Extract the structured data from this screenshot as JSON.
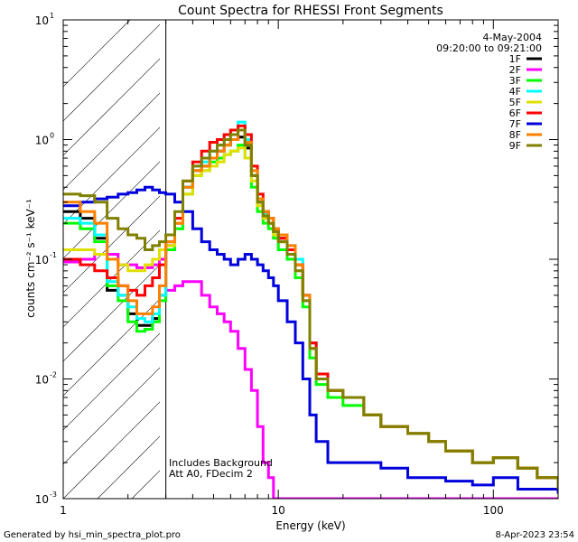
{
  "chart_data": {
    "type": "line",
    "title": "Count Spectra for RHESSI Front Segments",
    "xlabel": "Energy (keV)",
    "ylabel": "counts cm⁻² s⁻¹ keV⁻¹",
    "xscale": "log",
    "yscale": "log",
    "xlim": [
      1,
      200
    ],
    "ylim": [
      0.001,
      10
    ],
    "x_ticks": [
      {
        "value": 1,
        "label": "1"
      },
      {
        "value": 10,
        "label": "10"
      },
      {
        "value": 100,
        "label": "100"
      }
    ],
    "y_ticks": [
      {
        "value": 0.001,
        "base": "10",
        "exp": "-3"
      },
      {
        "value": 0.01,
        "base": "10",
        "exp": "-2"
      },
      {
        "value": 0.1,
        "base": "10",
        "exp": "-1"
      },
      {
        "value": 1,
        "base": "10",
        "exp": "0"
      },
      {
        "value": 10,
        "base": "10",
        "exp": "1"
      }
    ],
    "shaded_region": [
      1,
      3
    ],
    "date": "4-May-2004",
    "time_range": "09:20:00 to 09:21:00",
    "annotations": [
      "Includes Background",
      "Att A0, FDecim 2"
    ],
    "series": [
      {
        "name": "1F",
        "color": "#000000",
        "x": [
          1.0,
          1.2,
          1.4,
          1.6,
          1.8,
          2.0,
          2.2,
          2.4,
          2.6,
          2.8,
          3.0,
          3.3,
          3.6,
          4.0,
          4.4,
          4.8,
          5.2,
          5.6,
          6.0,
          6.5,
          7.0,
          7.5,
          8.0,
          8.5,
          9.0,
          9.5,
          10.0,
          11.0,
          12.0,
          13.0,
          14.0,
          15.0,
          17.0,
          20.0,
          25.0,
          30.0,
          40.0,
          50.0,
          60.0,
          80.0,
          100.0,
          130.0,
          160.0,
          200.0
        ],
        "y": [
          0.25,
          0.22,
          0.15,
          0.055,
          0.05,
          0.035,
          0.028,
          0.028,
          0.032,
          0.05,
          0.13,
          0.2,
          0.4,
          0.55,
          0.6,
          0.7,
          0.8,
          0.9,
          1.0,
          1.05,
          0.85,
          0.5,
          0.3,
          0.22,
          0.2,
          0.17,
          0.15,
          0.12,
          0.09,
          0.05,
          0.02,
          0.011,
          0.008,
          0.007,
          0.005,
          0.004,
          0.0035,
          0.003,
          0.0025,
          0.002,
          0.0022,
          0.0018,
          0.0015,
          0.0012
        ]
      },
      {
        "name": "2F",
        "color": "#ff00ff",
        "x": [
          1.0,
          1.2,
          1.4,
          1.6,
          1.8,
          2.0,
          2.2,
          2.4,
          2.6,
          2.8,
          3.0,
          3.3,
          3.6,
          4.0,
          4.4,
          4.8,
          5.2,
          5.6,
          6.0,
          6.5,
          7.0,
          7.5,
          8.0,
          8.5,
          9.0,
          9.5,
          10.0,
          11.0,
          12.0,
          13.0,
          14.0,
          15.0,
          17.0,
          20.0,
          25.0,
          30.0,
          40.0,
          50.0,
          60.0,
          80.0,
          100.0,
          130.0,
          160.0,
          200.0
        ],
        "y": [
          0.095,
          0.1,
          0.11,
          0.11,
          0.09,
          0.09,
          0.085,
          0.085,
          0.09,
          0.1,
          0.055,
          0.06,
          0.065,
          0.065,
          0.05,
          0.04,
          0.035,
          0.03,
          0.025,
          0.018,
          0.012,
          0.008,
          0.004,
          0.002,
          0.0015,
          0.001,
          0.001,
          0.001,
          0.001,
          0.001,
          0.001,
          0.001,
          0.001,
          0.001,
          0.001,
          0.001,
          0.001,
          0.001,
          0.001,
          0.001,
          0.001,
          0.001,
          0.001,
          0.001
        ]
      },
      {
        "name": "3F",
        "color": "#00ff00",
        "x": [
          1.0,
          1.2,
          1.4,
          1.6,
          1.8,
          2.0,
          2.2,
          2.4,
          2.6,
          2.8,
          3.0,
          3.3,
          3.6,
          4.0,
          4.4,
          4.8,
          5.2,
          5.6,
          6.0,
          6.5,
          7.0,
          7.5,
          8.0,
          8.5,
          9.0,
          9.5,
          10.0,
          11.0,
          12.0,
          13.0,
          14.0,
          15.0,
          17.0,
          20.0,
          25.0,
          30.0,
          40.0,
          50.0,
          60.0,
          80.0,
          100.0,
          130.0,
          160.0,
          200.0
        ],
        "y": [
          0.2,
          0.18,
          0.14,
          0.06,
          0.045,
          0.03,
          0.025,
          0.026,
          0.03,
          0.045,
          0.12,
          0.18,
          0.35,
          0.5,
          0.55,
          0.65,
          0.7,
          0.75,
          0.8,
          0.9,
          0.7,
          0.4,
          0.25,
          0.2,
          0.18,
          0.15,
          0.12,
          0.1,
          0.07,
          0.04,
          0.015,
          0.009,
          0.007,
          0.006,
          0.005,
          0.004,
          0.0035,
          0.003,
          0.0025,
          0.002,
          0.0022,
          0.0018,
          0.0015,
          0.0012
        ]
      },
      {
        "name": "4F",
        "color": "#00ffff",
        "x": [
          1.0,
          1.2,
          1.4,
          1.6,
          1.8,
          2.0,
          2.2,
          2.4,
          2.6,
          2.8,
          3.0,
          3.3,
          3.6,
          4.0,
          4.4,
          4.8,
          5.2,
          5.6,
          6.0,
          6.5,
          7.0,
          7.5,
          8.0,
          8.5,
          9.0,
          9.5,
          10.0,
          11.0,
          12.0,
          13.0,
          14.0,
          15.0,
          17.0,
          20.0,
          25.0,
          30.0,
          40.0,
          50.0,
          60.0,
          80.0,
          100.0,
          130.0,
          160.0,
          200.0
        ],
        "y": [
          0.22,
          0.2,
          0.16,
          0.065,
          0.05,
          0.04,
          0.032,
          0.03,
          0.035,
          0.05,
          0.14,
          0.22,
          0.4,
          0.6,
          0.65,
          0.8,
          0.9,
          1.1,
          1.2,
          1.4,
          1.0,
          0.55,
          0.32,
          0.24,
          0.22,
          0.18,
          0.16,
          0.13,
          0.1,
          0.05,
          0.02,
          0.01,
          0.008,
          0.007,
          0.005,
          0.004,
          0.0035,
          0.003,
          0.0025,
          0.002,
          0.0022,
          0.0018,
          0.0015,
          0.0012
        ]
      },
      {
        "name": "5F",
        "color": "#e0e000",
        "x": [
          1.0,
          1.2,
          1.4,
          1.6,
          1.8,
          2.0,
          2.2,
          2.4,
          2.6,
          2.8,
          3.0,
          3.3,
          3.6,
          4.0,
          4.4,
          4.8,
          5.2,
          5.6,
          6.0,
          6.5,
          7.0,
          7.5,
          8.0,
          8.5,
          9.0,
          9.5,
          10.0,
          11.0,
          12.0,
          13.0,
          14.0,
          15.0,
          17.0,
          20.0,
          25.0,
          30.0,
          40.0,
          50.0,
          60.0,
          80.0,
          100.0,
          130.0,
          160.0,
          200.0
        ],
        "y": [
          0.12,
          0.12,
          0.11,
          0.1,
          0.09,
          0.08,
          0.08,
          0.09,
          0.1,
          0.12,
          0.13,
          0.2,
          0.35,
          0.5,
          0.55,
          0.6,
          0.65,
          0.75,
          0.8,
          0.85,
          0.7,
          0.45,
          0.28,
          0.22,
          0.2,
          0.16,
          0.14,
          0.11,
          0.08,
          0.045,
          0.018,
          0.01,
          0.008,
          0.007,
          0.005,
          0.004,
          0.0035,
          0.003,
          0.0025,
          0.002,
          0.0022,
          0.0018,
          0.0015,
          0.0012
        ]
      },
      {
        "name": "6F",
        "color": "#ff0000",
        "x": [
          1.0,
          1.2,
          1.4,
          1.6,
          1.8,
          2.0,
          2.2,
          2.4,
          2.6,
          2.8,
          3.0,
          3.3,
          3.6,
          4.0,
          4.4,
          4.8,
          5.2,
          5.6,
          6.0,
          6.5,
          7.0,
          7.5,
          8.0,
          8.5,
          9.0,
          9.5,
          10.0,
          11.0,
          12.0,
          13.0,
          14.0,
          15.0,
          17.0,
          20.0,
          25.0,
          30.0,
          40.0,
          50.0,
          60.0,
          80.0,
          100.0,
          130.0,
          160.0,
          200.0
        ],
        "y": [
          0.1,
          0.09,
          0.08,
          0.07,
          0.06,
          0.055,
          0.05,
          0.06,
          0.07,
          0.09,
          0.14,
          0.22,
          0.45,
          0.65,
          0.8,
          0.95,
          1.0,
          1.1,
          1.2,
          1.3,
          1.1,
          0.6,
          0.35,
          0.25,
          0.22,
          0.18,
          0.15,
          0.12,
          0.09,
          0.05,
          0.02,
          0.011,
          0.008,
          0.007,
          0.005,
          0.004,
          0.0035,
          0.003,
          0.0025,
          0.002,
          0.0022,
          0.0018,
          0.0015,
          0.0012
        ]
      },
      {
        "name": "7F",
        "color": "#0000dd",
        "x": [
          1.0,
          1.2,
          1.4,
          1.6,
          1.8,
          2.0,
          2.2,
          2.4,
          2.6,
          2.8,
          3.0,
          3.3,
          3.6,
          4.0,
          4.4,
          4.8,
          5.2,
          5.6,
          6.0,
          6.5,
          7.0,
          7.5,
          8.0,
          8.5,
          9.0,
          9.5,
          10.0,
          11.0,
          12.0,
          13.0,
          14.0,
          15.0,
          17.0,
          20.0,
          25.0,
          30.0,
          40.0,
          50.0,
          60.0,
          80.0,
          100.0,
          130.0,
          160.0,
          200.0
        ],
        "y": [
          0.28,
          0.3,
          0.32,
          0.33,
          0.35,
          0.36,
          0.38,
          0.4,
          0.38,
          0.36,
          0.35,
          0.3,
          0.25,
          0.18,
          0.14,
          0.12,
          0.11,
          0.1,
          0.09,
          0.1,
          0.11,
          0.1,
          0.09,
          0.08,
          0.07,
          0.06,
          0.045,
          0.03,
          0.02,
          0.01,
          0.005,
          0.003,
          0.002,
          0.002,
          0.002,
          0.0018,
          0.0015,
          0.0015,
          0.0014,
          0.0013,
          0.0015,
          0.0012,
          0.0012,
          0.0011
        ]
      },
      {
        "name": "8F",
        "color": "#ff8000",
        "x": [
          1.0,
          1.2,
          1.4,
          1.6,
          1.8,
          2.0,
          2.2,
          2.4,
          2.6,
          2.8,
          3.0,
          3.3,
          3.6,
          4.0,
          4.4,
          4.8,
          5.2,
          5.6,
          6.0,
          6.5,
          7.0,
          7.5,
          8.0,
          8.5,
          9.0,
          9.5,
          10.0,
          11.0,
          12.0,
          13.0,
          14.0,
          15.0,
          17.0,
          20.0,
          25.0,
          30.0,
          40.0,
          50.0,
          60.0,
          80.0,
          100.0,
          130.0,
          160.0,
          200.0
        ],
        "y": [
          0.3,
          0.25,
          0.2,
          0.1,
          0.06,
          0.045,
          0.035,
          0.035,
          0.04,
          0.06,
          0.14,
          0.2,
          0.4,
          0.55,
          0.6,
          0.7,
          0.8,
          0.9,
          1.0,
          1.2,
          0.95,
          0.55,
          0.32,
          0.25,
          0.22,
          0.18,
          0.16,
          0.13,
          0.09,
          0.05,
          0.018,
          0.01,
          0.008,
          0.007,
          0.005,
          0.004,
          0.0035,
          0.003,
          0.0025,
          0.002,
          0.0022,
          0.0018,
          0.0015,
          0.0012
        ]
      },
      {
        "name": "9F",
        "color": "#808000",
        "x": [
          1.0,
          1.2,
          1.4,
          1.6,
          1.8,
          2.0,
          2.2,
          2.4,
          2.6,
          2.8,
          3.0,
          3.3,
          3.6,
          4.0,
          4.4,
          4.8,
          5.2,
          5.6,
          6.0,
          6.5,
          7.0,
          7.5,
          8.0,
          8.5,
          9.0,
          9.5,
          10.0,
          11.0,
          12.0,
          13.0,
          14.0,
          15.0,
          17.0,
          20.0,
          25.0,
          30.0,
          40.0,
          50.0,
          60.0,
          80.0,
          100.0,
          130.0,
          160.0,
          200.0
        ],
        "y": [
          0.35,
          0.34,
          0.3,
          0.22,
          0.18,
          0.16,
          0.15,
          0.12,
          0.13,
          0.14,
          0.16,
          0.25,
          0.45,
          0.6,
          0.7,
          0.8,
          0.9,
          1.0,
          1.1,
          1.2,
          0.9,
          0.5,
          0.3,
          0.23,
          0.2,
          0.17,
          0.14,
          0.11,
          0.08,
          0.045,
          0.018,
          0.01,
          0.008,
          0.007,
          0.005,
          0.004,
          0.0035,
          0.003,
          0.0025,
          0.002,
          0.0022,
          0.0018,
          0.0015,
          0.0012
        ]
      }
    ]
  },
  "footer": {
    "generated_by": "Generated by hsi_min_spectra_plot.pro",
    "timestamp": "8-Apr-2023 23:54"
  }
}
